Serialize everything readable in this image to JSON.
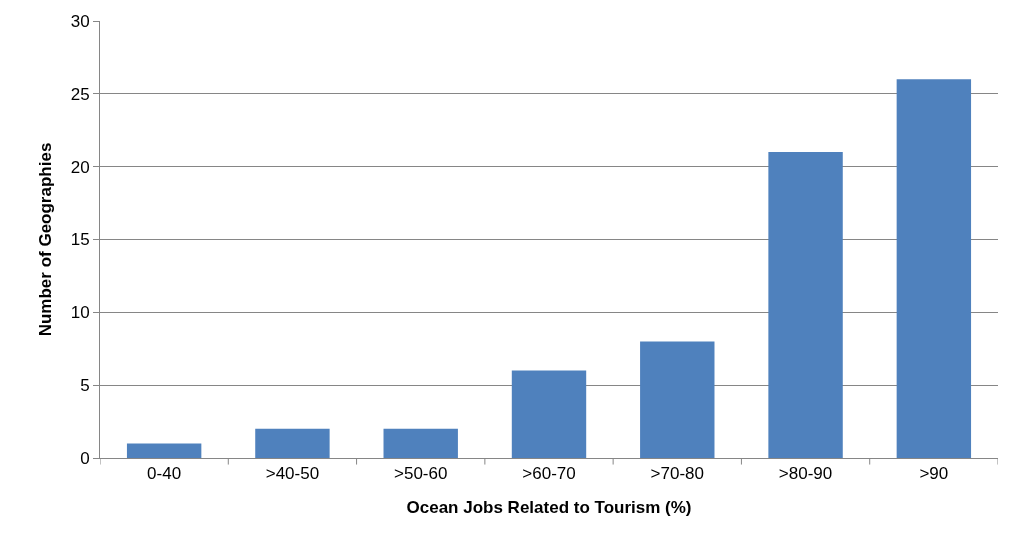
{
  "chart_data": {
    "type": "bar",
    "xlabel": "Ocean Jobs Related to Tourism (%)",
    "ylabel": "Number of Geographies",
    "categories": [
      "0-40",
      ">40-50",
      ">50-60",
      ">60-70",
      ">70-80",
      ">80-90",
      ">90"
    ],
    "values": [
      1,
      2,
      2,
      6,
      8,
      21,
      26
    ],
    "color": "#4f81bd",
    "ylim": [
      0,
      30
    ],
    "yticks": [
      0,
      5,
      10,
      15,
      20,
      25,
      30
    ],
    "grid": "y"
  }
}
